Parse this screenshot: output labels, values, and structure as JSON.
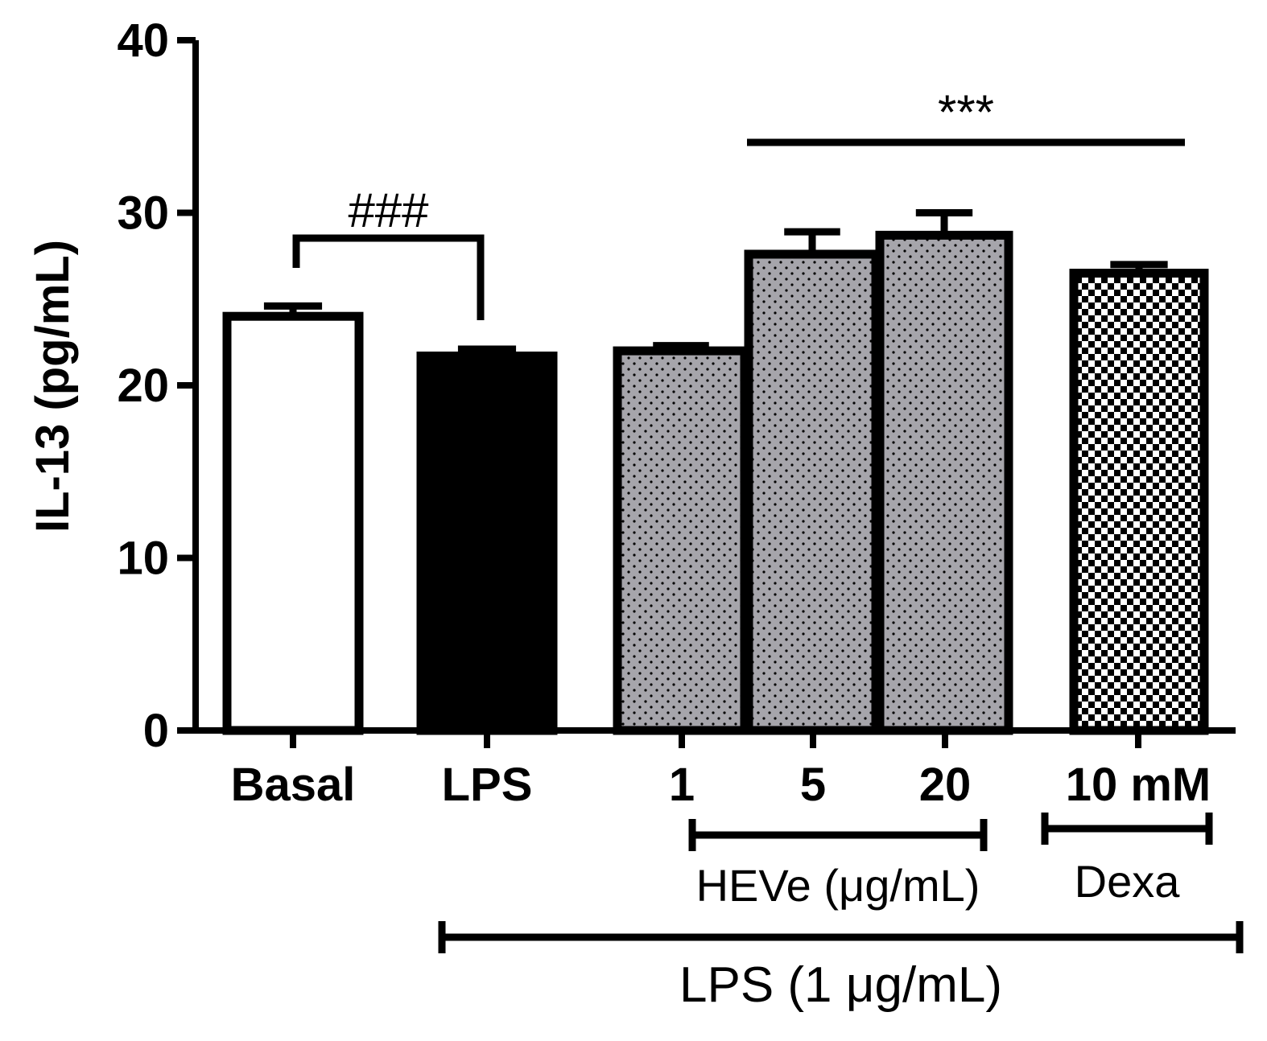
{
  "chart_data": {
    "type": "bar",
    "title": "",
    "xlabel": "",
    "ylabel": "IL-13 (pg/mL)",
    "ylim": [
      0,
      40
    ],
    "yticks": [
      0,
      10,
      20,
      30,
      40
    ],
    "grid": false,
    "categories": [
      "Basal",
      "LPS",
      "1",
      "5",
      "20",
      "10 mM"
    ],
    "values": [
      24.0,
      21.7,
      22.0,
      27.6,
      28.7,
      26.5
    ],
    "errors": [
      0.6,
      0.4,
      0.3,
      1.3,
      1.3,
      0.5
    ],
    "fills": [
      "white",
      "black",
      "dots-gray",
      "dots-gray",
      "dots-gray",
      "checker"
    ],
    "groups": [
      {
        "label": "HEVe (μg/mL)",
        "from": "1",
        "to": "20"
      },
      {
        "label": "Dexa",
        "from": "10 mM",
        "to": "10 mM"
      },
      {
        "label": "LPS (1 μg/mL)",
        "from": "LPS",
        "to": "10 mM"
      }
    ],
    "annotations": [
      {
        "text": "###",
        "from": "Basal",
        "to": "LPS"
      },
      {
        "text": "***",
        "from": "1",
        "to": "10 mM"
      }
    ]
  }
}
